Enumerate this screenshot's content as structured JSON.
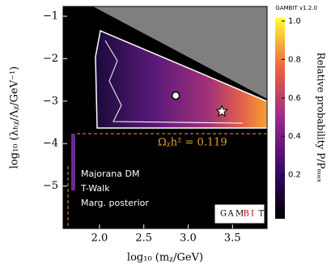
{
  "chart_data": {
    "type": "heatmap",
    "badge": "GAMBIT v1.2.0",
    "xlabel": "log₁₀ (mᵪ/GeV)",
    "ylabel": "log₁₀ (λₕᵪ/Λᵪ/GeV⁻¹)",
    "colorbar_label": "Relative probability P/Pₘₐₓ",
    "annotation": "Ωᵪh² = 0.119",
    "legend_lines": [
      "Majorana DM",
      "T-Walk",
      "Marg. posterior"
    ],
    "logo_letters": [
      "G",
      "A",
      "M",
      "B",
      "I",
      "T"
    ],
    "xlim": [
      1.59,
      3.89
    ],
    "ylim": [
      -6.0,
      -0.77
    ],
    "xticks": [
      {
        "value": 2,
        "label": "2.0"
      },
      2.5,
      {
        "value": 3,
        "label": "3.0"
      },
      3.5
    ],
    "yticks": [
      {
        "value": -1,
        "label": "−1"
      },
      {
        "value": -2,
        "label": "−2"
      },
      {
        "value": -3,
        "label": "−3"
      },
      {
        "value": -4,
        "label": "−4"
      },
      {
        "value": -5,
        "label": "−5"
      }
    ],
    "clim": [
      0,
      1
    ],
    "cticks": [
      0.2,
      0.4,
      0.6,
      0.8,
      {
        "value": 1,
        "label": "1.0"
      }
    ],
    "points": [
      {
        "x": 2.86,
        "y": -2.87,
        "marker": "circle"
      },
      {
        "x": 3.38,
        "y": -3.24,
        "marker": "star"
      }
    ]
  }
}
